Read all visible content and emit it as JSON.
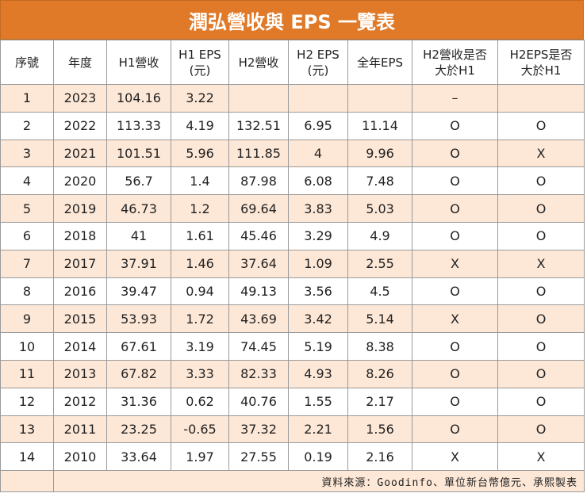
{
  "title": "潤弘營收與 EPS 一覽表",
  "headers": [
    "序號",
    "年度",
    "H1營收",
    "H1 EPS\n(元)",
    "H2營收",
    "H2 EPS\n(元)",
    "全年EPS",
    "H2營收是否\n大於H1",
    "H2EPS是否\n大於H1"
  ],
  "rows": [
    [
      "1",
      "2023",
      "104.16",
      "3.22",
      "",
      "",
      "",
      "–",
      ""
    ],
    [
      "2",
      "2022",
      "113.33",
      "4.19",
      "132.51",
      "6.95",
      "11.14",
      "O",
      "O"
    ],
    [
      "3",
      "2021",
      "101.51",
      "5.96",
      "111.85",
      "4",
      "9.96",
      "O",
      "X"
    ],
    [
      "4",
      "2020",
      "56.7",
      "1.4",
      "87.98",
      "6.08",
      "7.48",
      "O",
      "O"
    ],
    [
      "5",
      "2019",
      "46.73",
      "1.2",
      "69.64",
      "3.83",
      "5.03",
      "O",
      "O"
    ],
    [
      "6",
      "2018",
      "41",
      "1.61",
      "45.46",
      "3.29",
      "4.9",
      "O",
      "O"
    ],
    [
      "7",
      "2017",
      "37.91",
      "1.46",
      "37.64",
      "1.09",
      "2.55",
      "X",
      "X"
    ],
    [
      "8",
      "2016",
      "39.47",
      "0.94",
      "49.13",
      "3.56",
      "4.5",
      "O",
      "O"
    ],
    [
      "9",
      "2015",
      "53.93",
      "1.72",
      "43.69",
      "3.42",
      "5.14",
      "X",
      "O"
    ],
    [
      "10",
      "2014",
      "67.61",
      "3.19",
      "74.45",
      "5.19",
      "8.38",
      "O",
      "O"
    ],
    [
      "11",
      "2013",
      "67.82",
      "3.33",
      "82.33",
      "4.93",
      "8.26",
      "O",
      "O"
    ],
    [
      "12",
      "2012",
      "31.36",
      "0.62",
      "40.76",
      "1.55",
      "2.17",
      "O",
      "O"
    ],
    [
      "13",
      "2011",
      "23.25",
      "-0.65",
      "37.32",
      "2.21",
      "1.56",
      "O",
      "O"
    ],
    [
      "14",
      "2010",
      "33.64",
      "1.97",
      "27.55",
      "0.19",
      "2.16",
      "X",
      "X"
    ]
  ],
  "footnote": "資料來源：Goodinfo、單位新台幣億元、承熙製表",
  "colors": {
    "title_bg": "#e07a28",
    "alt_row_bg": "#fde7d6",
    "border": "#9a9a9a"
  }
}
